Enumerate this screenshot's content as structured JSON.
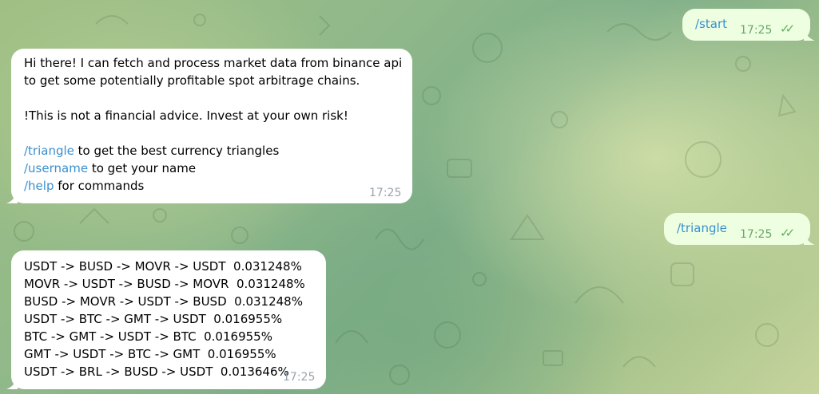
{
  "messages": {
    "start": {
      "text": "/start",
      "time": "17:25",
      "status": "read"
    },
    "greeting": {
      "line1": "Hi there! I can fetch and process market data from binance api",
      "line2": "to get some potentially profitable spot arbitrage chains.",
      "warning": "!This is not a financial advice. Invest at your own risk!",
      "commands": [
        {
          "cmd": "/triangle",
          "desc": " to get the best currency triangles"
        },
        {
          "cmd": "/username",
          "desc": " to get your name"
        },
        {
          "cmd": "/help",
          "desc": " for commands"
        }
      ],
      "time": "17:25"
    },
    "triangle": {
      "text": "/triangle",
      "time": "17:25",
      "status": "read"
    },
    "result": {
      "lines": [
        "USDT -> BUSD -> MOVR -> USDT  0.031248%",
        "MOVR -> USDT -> BUSD -> MOVR  0.031248%",
        "BUSD -> MOVR -> USDT -> BUSD  0.031248%",
        "USDT -> BTC -> GMT -> USDT  0.016955%",
        "BTC -> GMT -> USDT -> BTC  0.016955%",
        "GMT -> USDT -> BTC -> GMT  0.016955%",
        "USDT -> BRL -> BUSD -> USDT  0.013646%"
      ],
      "time": "17:25"
    }
  },
  "colors": {
    "command_link": "#3a8fd0",
    "outgoing_bubble": "#eefee0",
    "read_check": "#5faf5f"
  },
  "icons": {
    "read_status": "double-check-icon"
  }
}
